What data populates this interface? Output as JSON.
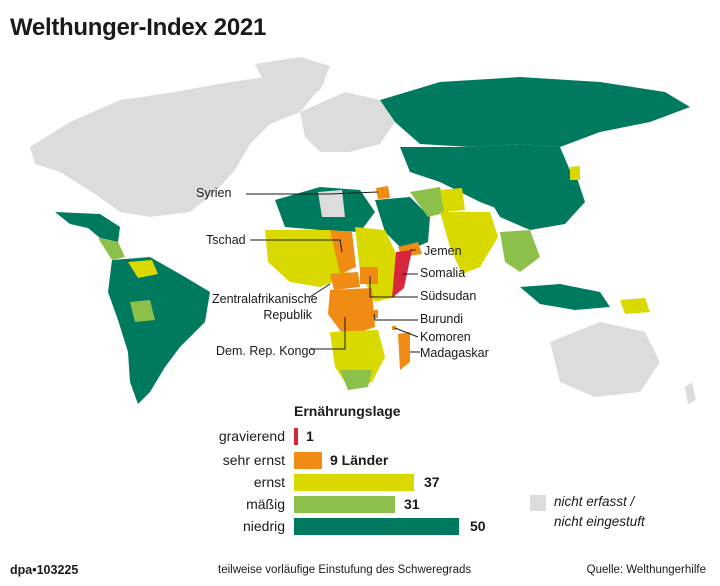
{
  "title": "Welthunger-Index 2021",
  "colors": {
    "gravierend": "#d7263d",
    "sehr_ernst": "#f08c14",
    "ernst": "#d9d900",
    "maessig": "#8cc04b",
    "niedrig": "#007a5e",
    "nicht_erfasst": "#dcdcdc"
  },
  "countries": {
    "syrien": "Syrien",
    "tschad": "Tschad",
    "zar": "Zentralafrikanische\nRepublik",
    "kongo": "Dem. Rep. Kongo",
    "jemen": "Jemen",
    "somalia": "Somalia",
    "suedsudan": "Südsudan",
    "burundi": "Burundi",
    "komoren": "Komoren",
    "madagaskar": "Madagaskar"
  },
  "legend": {
    "title": "Ernährungslage",
    "items": [
      {
        "label": "gravierend",
        "value": "1",
        "count": 1
      },
      {
        "label": "sehr ernst",
        "value": "9 Länder",
        "count": 9
      },
      {
        "label": "ernst",
        "value": "37",
        "count": 37
      },
      {
        "label": "mäßig",
        "value": "31",
        "count": 31
      },
      {
        "label": "niedrig",
        "value": "50",
        "count": 50
      }
    ],
    "not_rated": "nicht erfasst /\nnicht eingestuft"
  },
  "footer": {
    "id": "dpa•103225",
    "note": "teilweise vorläufige Einstufung des Schweregrads",
    "source": "Quelle: Welthungerhilfe"
  }
}
